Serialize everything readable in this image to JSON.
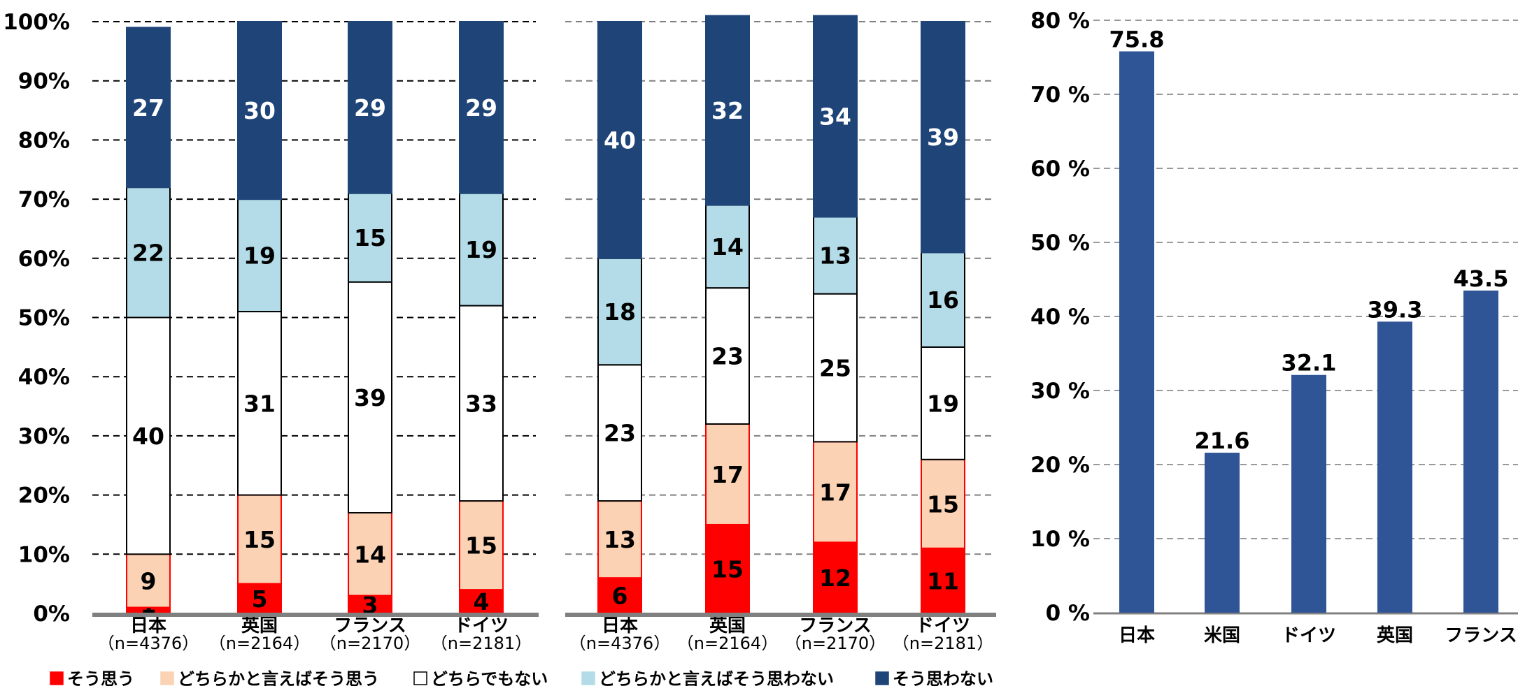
{
  "legend": [
    {
      "label": "そう思う",
      "color": "#FF0000"
    },
    {
      "label": "どちらかと言えばそう思う",
      "color": "#FBD2B4"
    },
    {
      "label": "どちらでもない",
      "color": "#FFFFFF"
    },
    {
      "label": "どちらかと言えばそう思わない",
      "color": "#B4DCE8"
    },
    {
      "label": "そう思わない",
      "color": "#1F4478"
    }
  ],
  "chart_data": [
    {
      "type": "bar",
      "stacked": true,
      "percent_axis": true,
      "categories": [
        "日本",
        "英国",
        "フランス",
        "ドイツ"
      ],
      "category_sublabels": [
        "（n=4376）",
        "（n=2164）",
        "（n=2170）",
        "（n=2181）"
      ],
      "ylim": [
        0,
        100
      ],
      "yticks": [
        "0%",
        "10%",
        "20%",
        "30%",
        "40%",
        "50%",
        "60%",
        "70%",
        "80%",
        "90%",
        "100%"
      ],
      "grid": true,
      "series": [
        {
          "name": "そう思う",
          "values": [
            1,
            5,
            3,
            4
          ]
        },
        {
          "name": "どちらかと言えばそう思う",
          "values": [
            9,
            15,
            14,
            15
          ]
        },
        {
          "name": "どちらでもない",
          "values": [
            40,
            31,
            39,
            33
          ]
        },
        {
          "name": "どちらかと言えばそう思わない",
          "values": [
            22,
            19,
            15,
            19
          ]
        },
        {
          "name": "そう思わない",
          "values": [
            27,
            30,
            29,
            29
          ]
        }
      ]
    },
    {
      "type": "bar",
      "stacked": true,
      "categories": [
        "日本",
        "英国",
        "フランス",
        "ドイツ"
      ],
      "category_sublabels": [
        "（n=4376）",
        "（n=2164）",
        "（n=2170）",
        "（n=2181）"
      ],
      "ylim": [
        0,
        100
      ],
      "grid": true,
      "series": [
        {
          "name": "そう思う",
          "values": [
            6,
            15,
            12,
            11
          ]
        },
        {
          "name": "どちらかと言えばそう思う",
          "values": [
            13,
            17,
            17,
            15
          ]
        },
        {
          "name": "どちらでもない",
          "values": [
            23,
            23,
            25,
            19
          ]
        },
        {
          "name": "どちらかと言えばそう思わない",
          "values": [
            18,
            14,
            13,
            16
          ]
        },
        {
          "name": "そう思わない",
          "values": [
            40,
            32,
            34,
            39
          ]
        }
      ]
    },
    {
      "type": "bar",
      "categories": [
        "日本",
        "米国",
        "ドイツ",
        "英国",
        "フランス"
      ],
      "values": [
        75.8,
        21.6,
        32.1,
        39.3,
        43.5
      ],
      "ylim": [
        0,
        80
      ],
      "yticks": [
        "0 %",
        "10 %",
        "20 %",
        "30 %",
        "40 %",
        "50 %",
        "60 %",
        "70 %",
        "80 %"
      ],
      "grid": true,
      "color": "#2F5597"
    }
  ]
}
